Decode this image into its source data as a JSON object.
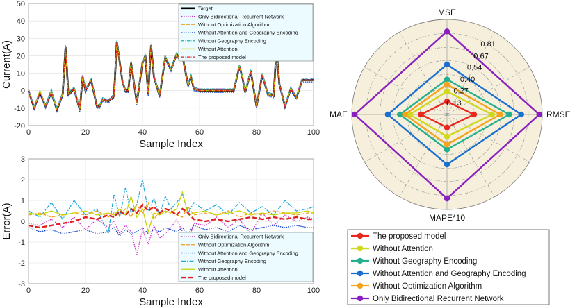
{
  "chart_data": [
    {
      "type": "line",
      "title": "",
      "xlabel": "Sample Index",
      "ylabel": "Current(A)",
      "xlim": [
        0,
        100
      ],
      "ylim": [
        -20,
        50
      ],
      "xticks": [
        "0",
        "20",
        "40",
        "60",
        "80",
        "100"
      ],
      "yticks": [
        "-20",
        "-10",
        "0",
        "10",
        "20",
        "30",
        "40",
        "50"
      ],
      "grid": true,
      "legend_position": "top-right",
      "x": [
        0,
        2,
        4,
        6,
        8,
        10,
        12,
        13,
        14,
        16,
        18,
        19,
        20,
        22,
        24,
        25,
        26,
        28,
        30,
        31,
        33,
        34,
        35,
        36,
        38,
        40,
        41,
        42,
        43,
        44,
        46,
        48,
        50,
        52,
        53,
        54,
        56,
        57,
        58,
        60,
        62,
        64,
        66,
        68,
        70,
        72,
        74,
        75,
        76,
        78,
        80,
        82,
        84,
        86,
        87,
        88,
        90,
        92,
        94,
        96,
        98,
        100
      ],
      "series": [
        {
          "name": "Target",
          "color": "#000000",
          "values": [
            0,
            -10,
            -1,
            -9,
            -1,
            -11,
            -2,
            25,
            -2,
            1,
            -11,
            8,
            0,
            6,
            -9,
            -9,
            -5,
            -6,
            -3,
            28,
            5,
            0,
            0,
            16,
            -7,
            16,
            20,
            -2,
            26,
            8,
            -3,
            19,
            12,
            21,
            18,
            20,
            3,
            8,
            1,
            0,
            0,
            0,
            0,
            0,
            0,
            0,
            14,
            8,
            -1,
            11,
            -9,
            9,
            -2,
            -3,
            24,
            4,
            -9,
            1,
            -4,
            6,
            6,
            6
          ]
        },
        {
          "name": "Only Bidirectional Recurrent Network",
          "color": "#cc33cc",
          "values": [
            1,
            -9,
            0,
            -8,
            0,
            -10,
            -1,
            24,
            -1,
            2,
            -10,
            9,
            1,
            6,
            -9,
            -8,
            -4,
            -6,
            -2,
            27,
            6,
            1,
            1,
            16,
            -6,
            16,
            20,
            -1,
            25,
            9,
            -2,
            18,
            12,
            20,
            18,
            19,
            4,
            8,
            2,
            1,
            1,
            1,
            1,
            1,
            1,
            1,
            13,
            8,
            0,
            10,
            -8,
            9,
            -1,
            -2,
            23,
            5,
            -8,
            2,
            -3,
            7,
            6,
            7
          ]
        },
        {
          "name": "Without Optimization Algorithm",
          "color": "#f0a020",
          "values": [
            0,
            -10,
            -1,
            -9,
            0,
            -10,
            -2,
            24,
            -2,
            1,
            -10,
            8,
            0,
            6,
            -9,
            -9,
            -5,
            -6,
            -3,
            27,
            5,
            0,
            0,
            16,
            -7,
            16,
            20,
            -2,
            25,
            8,
            -3,
            19,
            12,
            20,
            18,
            20,
            3,
            8,
            1,
            0,
            0,
            0,
            0,
            0,
            0,
            0,
            14,
            8,
            -1,
            11,
            -9,
            9,
            -2,
            -3,
            23,
            4,
            -9,
            1,
            -4,
            6,
            6,
            6
          ]
        },
        {
          "name": "Without Attention and Geography Encoding",
          "color": "#1144cc",
          "values": [
            -1,
            -11,
            -2,
            -10,
            -2,
            -12,
            -3,
            25,
            -3,
            0,
            -12,
            7,
            -1,
            5,
            -10,
            -10,
            -6,
            -7,
            -4,
            28,
            4,
            -1,
            -1,
            15,
            -8,
            15,
            19,
            -3,
            26,
            7,
            -4,
            18,
            11,
            20,
            17,
            19,
            2,
            7,
            0,
            -1,
            -1,
            -1,
            -1,
            -1,
            -1,
            -1,
            13,
            7,
            -2,
            10,
            -10,
            8,
            -3,
            -4,
            24,
            3,
            -10,
            0,
            -5,
            5,
            5,
            5
          ]
        },
        {
          "name": "Without Geography Encoding",
          "color": "#20b2aa",
          "values": [
            1,
            -9,
            0,
            -8,
            1,
            -10,
            -1,
            26,
            -1,
            2,
            -10,
            9,
            1,
            7,
            -8,
            -8,
            -4,
            -5,
            -2,
            29,
            6,
            1,
            1,
            17,
            -6,
            17,
            21,
            -1,
            27,
            9,
            -2,
            20,
            13,
            22,
            19,
            21,
            4,
            9,
            2,
            1,
            1,
            1,
            1,
            1,
            1,
            1,
            15,
            9,
            0,
            12,
            -8,
            10,
            -1,
            -2,
            25,
            5,
            -8,
            2,
            -3,
            7,
            7,
            7
          ]
        },
        {
          "name": "Without Attention",
          "color": "#c8d400",
          "values": [
            0,
            -10,
            0,
            -9,
            -1,
            -11,
            -2,
            25,
            -2,
            1,
            -11,
            8,
            0,
            6,
            -9,
            -9,
            -5,
            -6,
            -3,
            28,
            5,
            0,
            0,
            16,
            -7,
            16,
            20,
            -2,
            26,
            8,
            -3,
            19,
            12,
            21,
            18,
            20,
            3,
            8,
            1,
            0,
            0,
            0,
            0,
            0,
            0,
            0,
            14,
            8,
            -1,
            11,
            -9,
            9,
            -2,
            -3,
            24,
            4,
            -9,
            1,
            -4,
            6,
            6,
            6
          ]
        },
        {
          "name": "The proposed model",
          "color": "#e02020",
          "values": [
            0,
            -10,
            -1,
            -9,
            -1,
            -11,
            -2,
            25,
            -2,
            1,
            -11,
            8,
            0,
            6,
            -9,
            -9,
            -5,
            -6,
            -3,
            28,
            5,
            0,
            0,
            16,
            -7,
            16,
            20,
            -2,
            26,
            8,
            -3,
            19,
            12,
            21,
            18,
            20,
            3,
            8,
            1,
            0,
            0,
            0,
            0,
            0,
            0,
            0,
            14,
            8,
            -1,
            11,
            -9,
            9,
            -2,
            -3,
            24,
            4,
            -9,
            1,
            -4,
            6,
            6,
            6
          ]
        }
      ]
    },
    {
      "type": "line",
      "title": "",
      "xlabel": "Sample Index",
      "ylabel": "Error(A)",
      "xlim": [
        0,
        100
      ],
      "ylim": [
        -3,
        3
      ],
      "xticks": [
        "0",
        "20",
        "40",
        "60",
        "80",
        "100"
      ],
      "yticks": [
        "-3",
        "-2",
        "-1",
        "0",
        "1",
        "2",
        "3"
      ],
      "grid": true,
      "legend_position": "bottom-right",
      "x": [
        0,
        4,
        8,
        12,
        16,
        20,
        24,
        28,
        30,
        32,
        34,
        36,
        38,
        40,
        42,
        44,
        46,
        48,
        50,
        52,
        54,
        56,
        58,
        62,
        66,
        70,
        74,
        78,
        82,
        86,
        90,
        94,
        98,
        100
      ],
      "series": [
        {
          "name": "Only Bidirectional Recurrent Network",
          "color": "#cc33cc",
          "values": [
            -0.1,
            -0.2,
            0.1,
            -0.3,
            0.2,
            -0.4,
            0.1,
            -0.3,
            0.0,
            -0.6,
            -0.2,
            -0.5,
            -1.6,
            -0.4,
            -1.1,
            -0.2,
            -0.8,
            -0.6,
            -0.3,
            0.1,
            -0.5,
            -1.0,
            -0.1,
            -0.2,
            0.2,
            -0.3,
            0.1,
            -0.6,
            0.4,
            -0.2,
            0.3,
            0.0,
            0.2,
            0.1
          ]
        },
        {
          "name": "Without Optimization Algorithm",
          "color": "#f0a020",
          "values": [
            0.3,
            0.4,
            0.2,
            0.3,
            0.4,
            0.3,
            0.5,
            0.2,
            0.4,
            0.3,
            0.6,
            0.2,
            0.8,
            0.4,
            0.9,
            0.1,
            0.5,
            0.4,
            0.6,
            0.3,
            0.2,
            0.7,
            0.3,
            0.4,
            0.3,
            0.5,
            0.2,
            0.4,
            0.3,
            0.5,
            0.4,
            0.3,
            0.4,
            0.4
          ]
        },
        {
          "name": "Without Attention and Geography Encoding",
          "color": "#1144cc",
          "values": [
            -0.3,
            -0.5,
            -0.4,
            -0.6,
            -0.5,
            -0.4,
            -0.6,
            -0.5,
            -0.3,
            -0.7,
            -0.4,
            -0.6,
            -0.5,
            -0.3,
            -0.6,
            -0.4,
            -0.5,
            -0.3,
            -0.4,
            -0.5,
            -0.3,
            -0.6,
            -0.2,
            -0.4,
            -0.3,
            -0.5,
            -0.2,
            -0.4,
            -0.3,
            -0.2,
            -0.3,
            -0.2,
            -0.3,
            -0.3
          ]
        },
        {
          "name": "Without Geography Encoding",
          "color": "#22aadd",
          "values": [
            0.5,
            0.2,
            0.9,
            0.1,
            1.0,
            0.3,
            0.6,
            -0.6,
            1.3,
            0.2,
            1.6,
            0.4,
            0.8,
            2.0,
            0.5,
            1.1,
            0.3,
            1.2,
            0.6,
            0.9,
            1.3,
            0.4,
            0.9,
            0.5,
            0.8,
            0.3,
            0.9,
            0.4,
            0.7,
            0.3,
            1.0,
            0.5,
            0.6,
            0.7
          ]
        },
        {
          "name": "Without Attention",
          "color": "#c8d400",
          "values": [
            0.4,
            0.3,
            0.5,
            0.3,
            0.4,
            0.5,
            0.3,
            0.4,
            0.3,
            0.6,
            0.3,
            1.2,
            0.2,
            0.6,
            -0.5,
            0.4,
            0.3,
            0.5,
            0.4,
            0.6,
            1.4,
            0.3,
            0.4,
            0.5,
            0.3,
            0.4,
            0.5,
            0.3,
            0.4,
            0.3,
            0.4,
            0.4,
            0.5,
            0.4
          ]
        },
        {
          "name": "The proposed model",
          "color": "#e02020",
          "values": [
            -0.2,
            -0.3,
            -0.2,
            -0.1,
            0.0,
            0.2,
            0.1,
            0.3,
            0.2,
            0.5,
            0.3,
            0.6,
            0.4,
            0.8,
            0.5,
            0.7,
            0.4,
            0.6,
            0.5,
            0.3,
            0.6,
            0.4,
            0.1,
            0.0,
            0.1,
            0.0,
            0.1,
            0.2,
            0.1,
            0.2,
            0.1,
            0.2,
            0.1,
            0.1
          ]
        }
      ]
    },
    {
      "type": "radar",
      "axes": [
        "MSE",
        "RMSE",
        "MAPE*10",
        "MAE"
      ],
      "rticks": [
        "0.13",
        "0.27",
        "0.40",
        "0.54",
        "0.67",
        "0.81"
      ],
      "rmax": 0.95,
      "legend_position": "bottom",
      "series": [
        {
          "name": "The proposed model",
          "color": "#e8281e",
          "values": [
            0.13,
            0.27,
            0.13,
            0.26
          ]
        },
        {
          "name": "Without Attention",
          "color": "#cfd81c",
          "values": [
            0.23,
            0.45,
            0.22,
            0.37
          ]
        },
        {
          "name": "Without Geography Encoding",
          "color": "#22b08e",
          "values": [
            0.35,
            0.62,
            0.35,
            0.47
          ]
        },
        {
          "name": "Without Attention and Geography Encoding",
          "color": "#1b6fd0",
          "values": [
            0.5,
            0.74,
            0.5,
            0.59
          ]
        },
        {
          "name": "Without Optimization Algorithm",
          "color": "#f5a31a",
          "values": [
            0.3,
            0.53,
            0.3,
            0.42
          ]
        },
        {
          "name": "Only Bidirectional Recurrent Network",
          "color": "#8a1fc0",
          "values": [
            0.83,
            0.92,
            0.84,
            0.92
          ]
        }
      ]
    }
  ]
}
